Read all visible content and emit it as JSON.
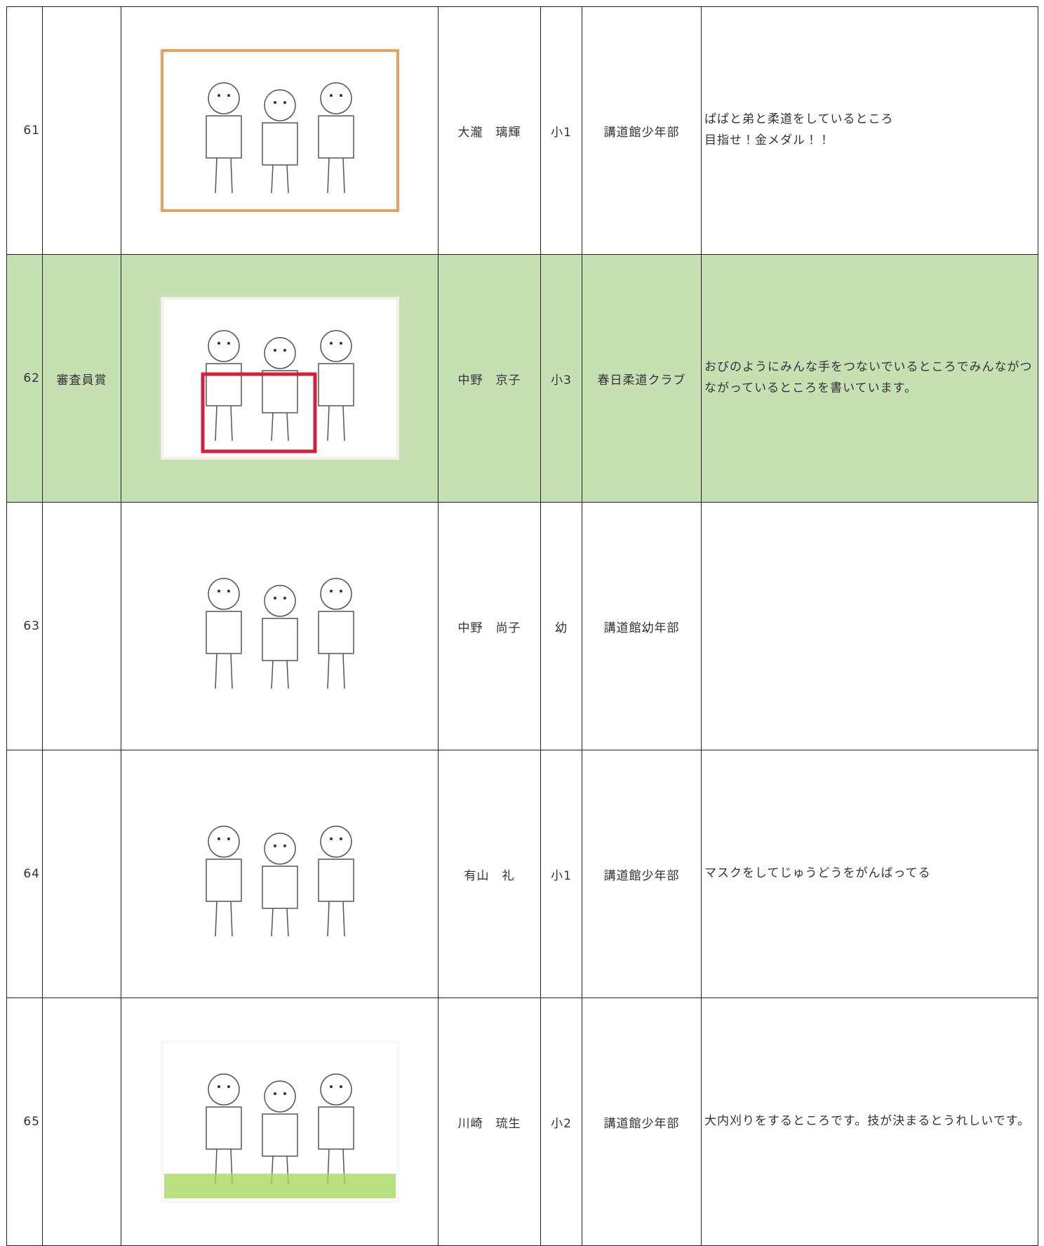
{
  "table": {
    "rows": [
      {
        "no": 61,
        "name": "大瀧　璃輝",
        "grade": "小1",
        "club": "講道館少年部",
        "comment": "ぱぱと弟と柔道をしているところ\n目指せ！金メダル！！"
      },
      {
        "no": 62,
        "award": "審査員賞",
        "name": "中野　京子",
        "grade": "小3",
        "club": "春日柔道クラブ",
        "comment": "おびのようにみんな手をつないでいるところでみんながつながっているところを書いています。"
      },
      {
        "no": 63,
        "name": "中野　尚子",
        "grade": "幼",
        "club": "講道館幼年部"
      },
      {
        "no": 64,
        "name": "有山　礼",
        "grade": "小1",
        "club": "講道館少年部",
        "comment": "マスクをしてじゅうどうをがんばってる"
      },
      {
        "no": 65,
        "name": "川崎　琉生",
        "grade": "小2",
        "club": "講道館少年部",
        "comment": "大内刈りをするところです。技が決まるとうれしいです。"
      }
    ]
  }
}
